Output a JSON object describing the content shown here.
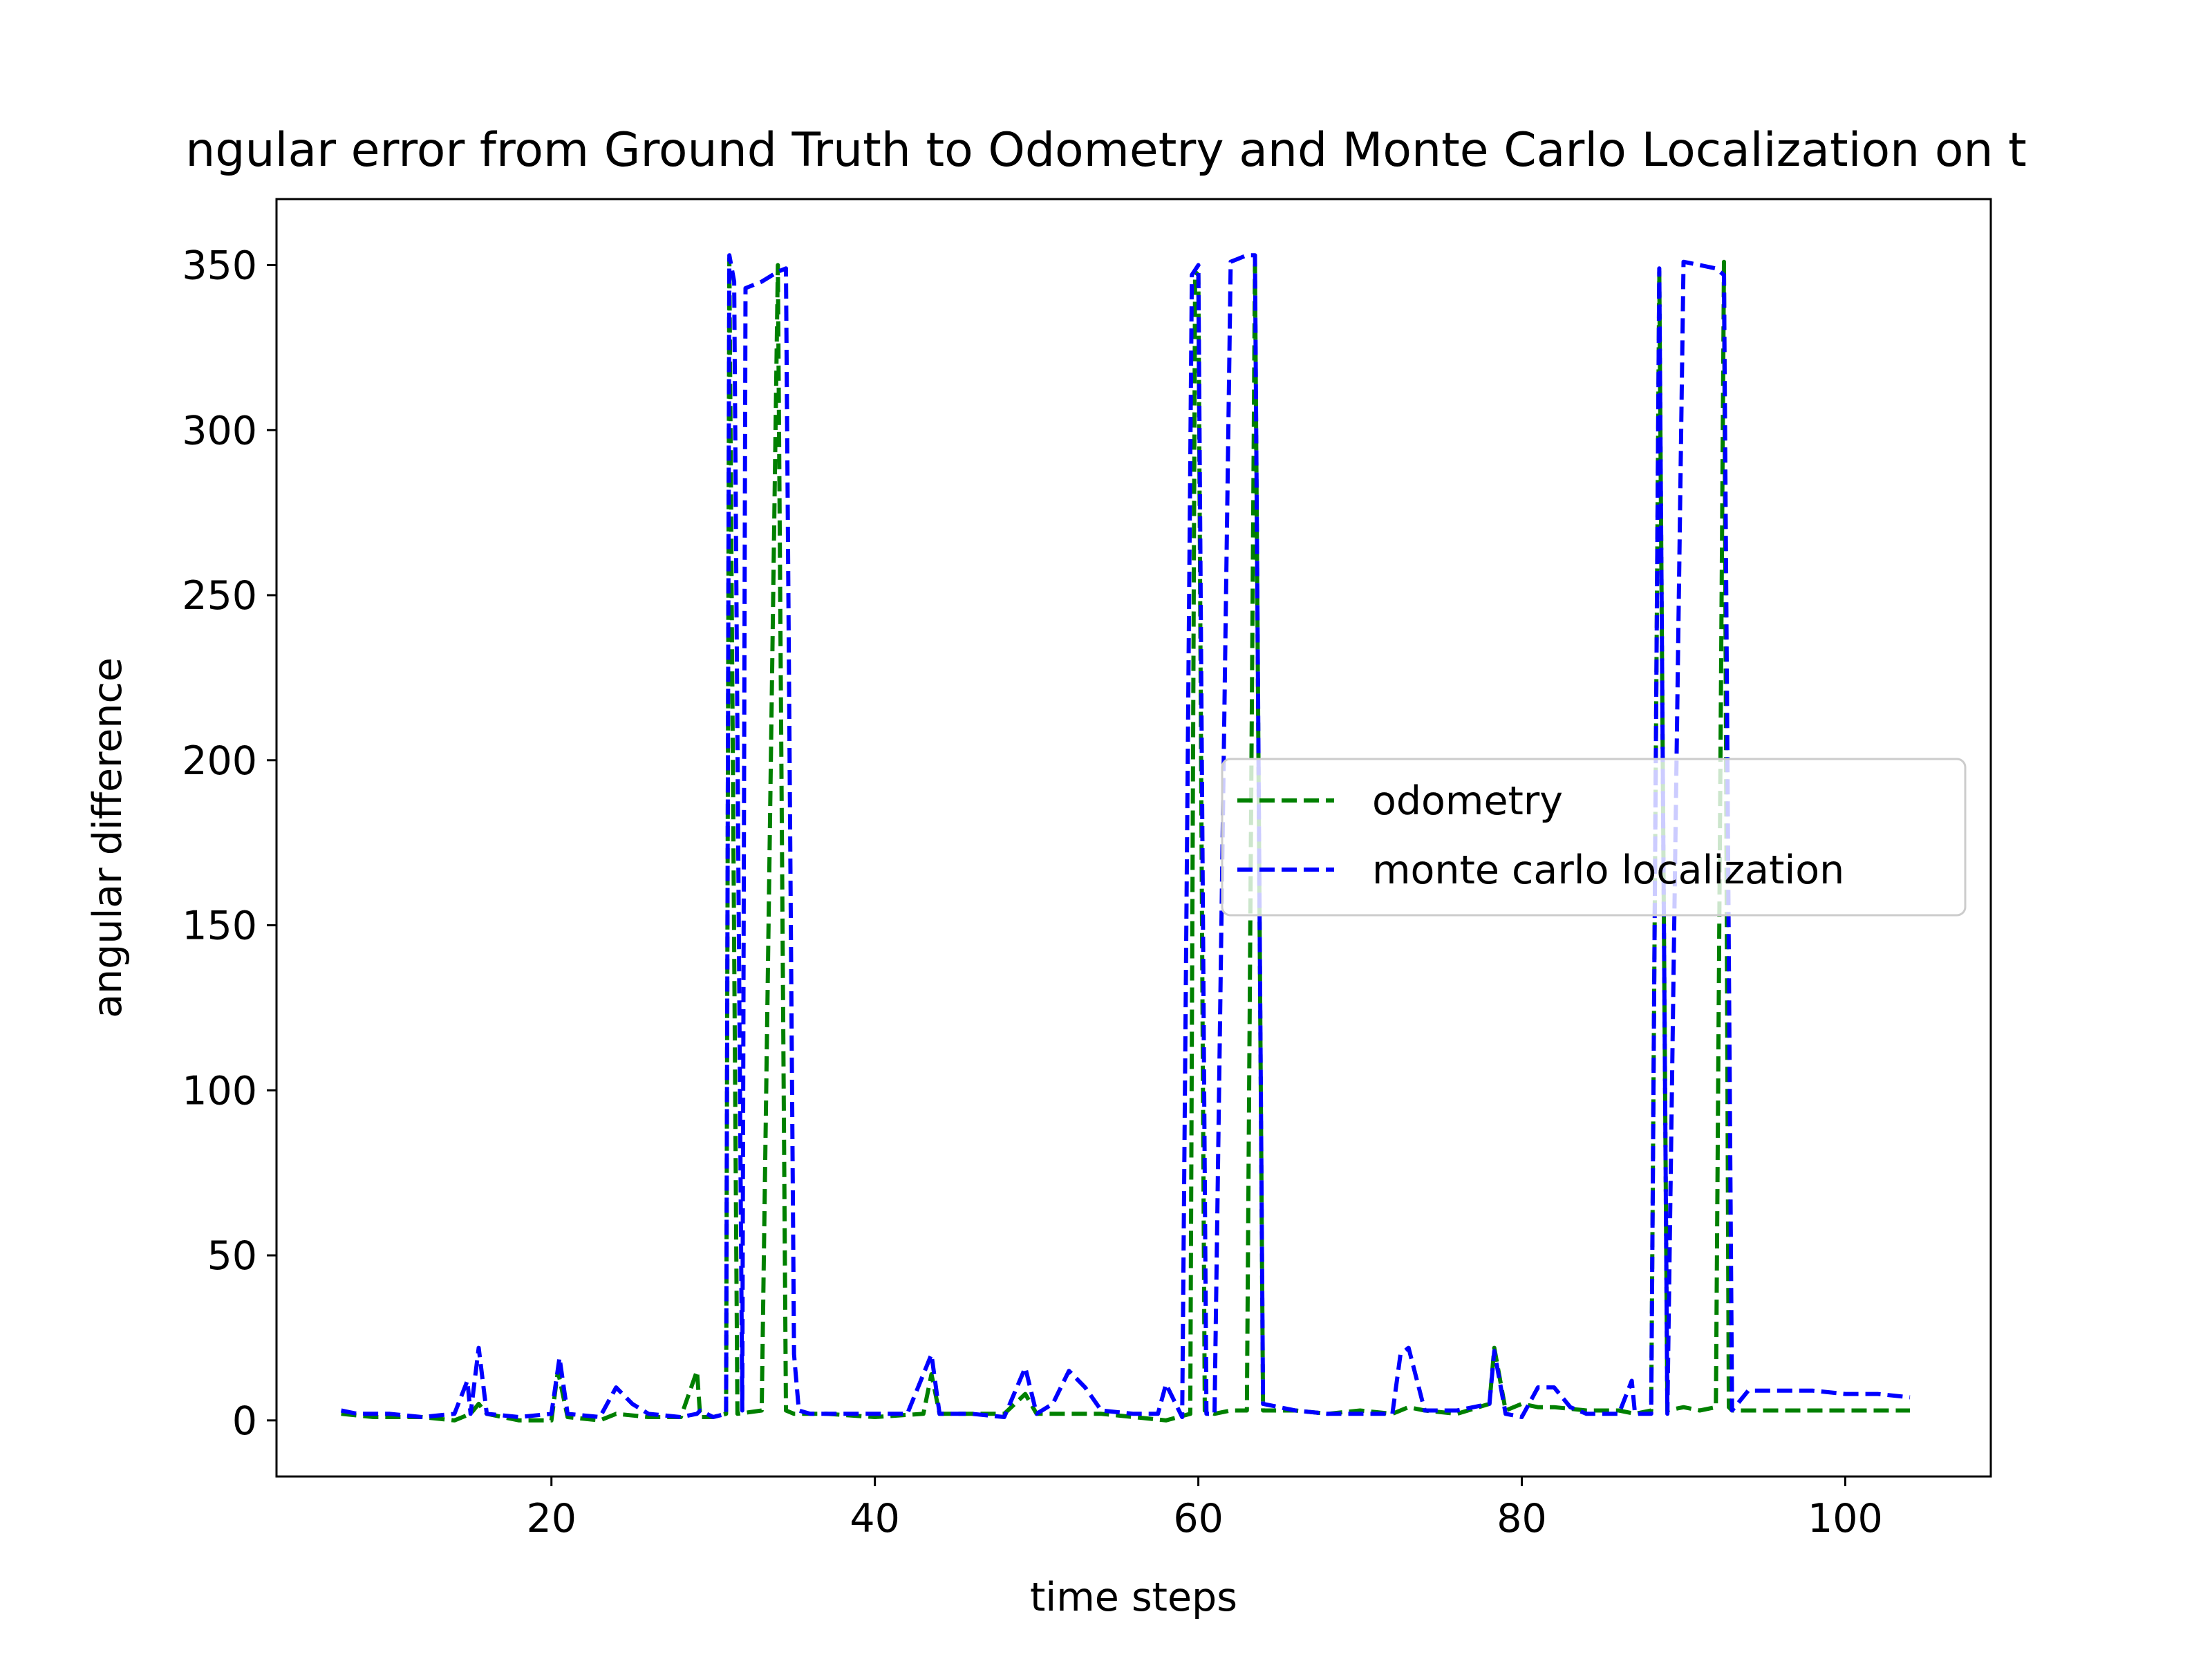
{
  "chart_data": {
    "type": "line",
    "title": "ngular error from Ground Truth to Odometry and Monte Carlo Localization on t",
    "xlabel": "time steps",
    "ylabel": "angular difference",
    "xlim": [
      3,
      109
    ],
    "ylim": [
      -17,
      370
    ],
    "xticks": [
      20,
      40,
      60,
      80,
      100
    ],
    "yticks": [
      0,
      50,
      100,
      150,
      200,
      250,
      300,
      350
    ],
    "grid": false,
    "legend_position": "center-right",
    "series": [
      {
        "name": "odometry",
        "color": "#008000",
        "linestyle": "dashed",
        "x": [
          7,
          9,
          12,
          14,
          15,
          15.5,
          16,
          18,
          20,
          20.4,
          21,
          23,
          24,
          26,
          28,
          29,
          29.2,
          30,
          30.8,
          31,
          31.5,
          33,
          34,
          34.5,
          35,
          37,
          40,
          43,
          43.5,
          44,
          46,
          48,
          49.3,
          50,
          52,
          54,
          56,
          58,
          59.5,
          59.8,
          60,
          60.4,
          61,
          62,
          63,
          63.5,
          64,
          66,
          68,
          70,
          72,
          73,
          74,
          76,
          78,
          78.3,
          79,
          80,
          81,
          82,
          84,
          86,
          87,
          88,
          88.5,
          89,
          90,
          91,
          92,
          92.5,
          92.8,
          93,
          93.5,
          94,
          96,
          98,
          100,
          102,
          104
        ],
        "y": [
          2,
          1,
          1,
          0,
          2,
          5,
          2,
          0,
          0,
          15,
          1,
          0,
          2,
          1,
          1,
          15,
          1,
          1,
          2,
          352,
          2,
          3,
          350,
          3,
          2,
          2,
          1,
          2,
          14,
          2,
          2,
          2,
          8,
          2,
          2,
          2,
          1,
          0,
          2,
          348,
          347,
          3,
          2,
          3,
          3,
          350,
          3,
          3,
          2,
          3,
          2,
          4,
          3,
          2,
          5,
          22,
          3,
          5,
          4,
          4,
          3,
          3,
          2,
          3,
          348,
          3,
          4,
          3,
          4,
          351,
          4,
          3,
          3,
          3,
          3,
          3,
          3,
          3,
          3
        ]
      },
      {
        "name": "monte carlo localization",
        "color": "#0000ff",
        "linestyle": "dashed",
        "x": [
          7,
          8,
          10,
          12,
          14,
          14.8,
          15,
          15.5,
          16,
          18,
          20,
          20.5,
          21,
          23,
          24,
          25,
          26,
          28,
          29,
          29.2,
          30,
          30.8,
          31,
          31.3,
          31.8,
          32,
          33,
          34,
          34.5,
          35,
          35.3,
          36,
          38,
          40,
          42,
          43.5,
          44,
          46,
          48,
          49.3,
          50,
          51,
          52,
          53,
          54,
          56,
          57.5,
          58,
          59,
          59.6,
          60,
          60.5,
          61,
          62,
          62.5,
          63,
          63.5,
          64,
          66,
          68,
          70,
          72,
          72.5,
          73,
          74,
          76,
          78,
          78.3,
          79,
          80,
          81,
          82,
          83,
          84,
          86,
          86.8,
          87,
          88,
          88.5,
          89,
          90,
          91,
          92,
          92.5,
          93,
          94,
          96,
          98,
          100,
          102,
          104
        ],
        "y": [
          3,
          2,
          2,
          1,
          2,
          12,
          2,
          22,
          2,
          1,
          2,
          19,
          2,
          1,
          10,
          5,
          2,
          1,
          2,
          3,
          1,
          2,
          353,
          345,
          3,
          343,
          345,
          348,
          349,
          20,
          3,
          2,
          2,
          2,
          2,
          20,
          2,
          2,
          1,
          16,
          2,
          5,
          15,
          10,
          3,
          2,
          2,
          11,
          1,
          347,
          350,
          2,
          2,
          351,
          352,
          353,
          353,
          5,
          3,
          2,
          2,
          2,
          20,
          22,
          3,
          3,
          5,
          21,
          2,
          1,
          10,
          10,
          4,
          2,
          2,
          12,
          2,
          2,
          349,
          2,
          351,
          350,
          349,
          347,
          3,
          9,
          9,
          9,
          8,
          8,
          7
        ]
      }
    ]
  }
}
